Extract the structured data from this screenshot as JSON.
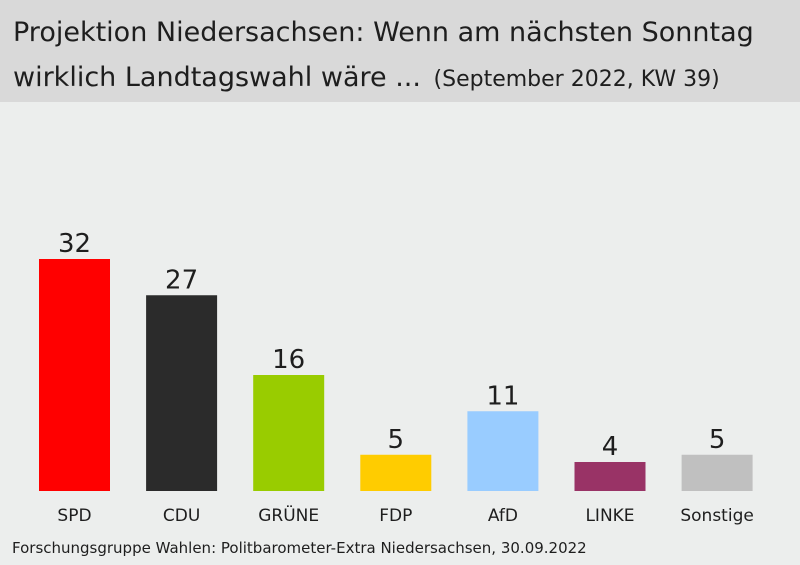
{
  "chart_data": {
    "type": "bar",
    "title_line1": "Projektion Niedersachsen: Wenn am nächsten Sonntag",
    "title_line2": "wirklich Landtagswahl wäre ...",
    "subtitle": "(September 2022, KW 39)",
    "categories": [
      "SPD",
      "CDU",
      "GRÜNE",
      "FDP",
      "AfD",
      "LINKE",
      "Sonstige"
    ],
    "values": [
      32,
      27,
      16,
      5,
      11,
      4,
      5
    ],
    "colors": [
      "#ff0000",
      "#2b2b2b",
      "#99cc00",
      "#ffcc00",
      "#99ccff",
      "#993366",
      "#c0c0c0"
    ],
    "ylim": [
      0,
      40
    ],
    "grid": false,
    "source": "Forschungsgruppe Wahlen: Politbarometer-Extra Niedersachsen, 30.09.2022"
  }
}
